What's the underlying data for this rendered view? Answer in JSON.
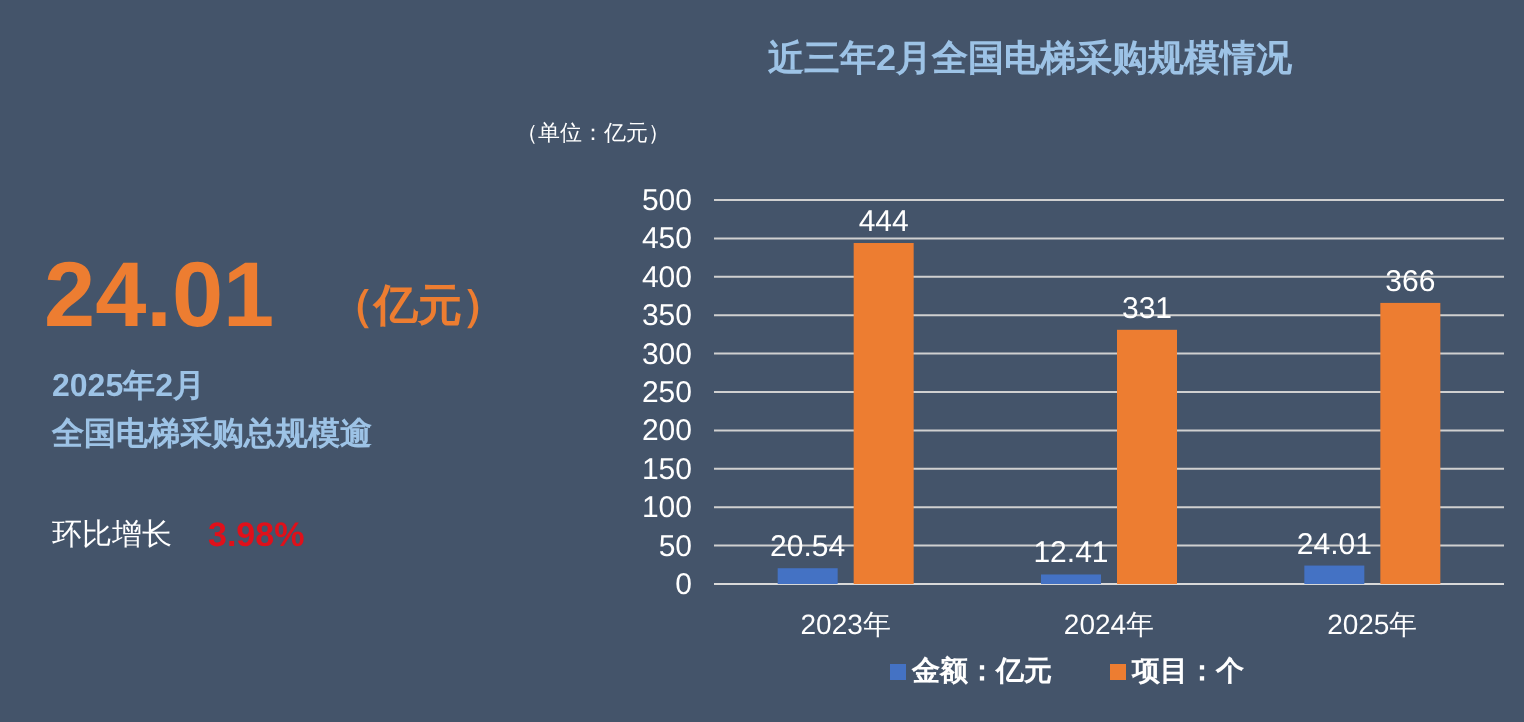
{
  "chart_data": {
    "type": "bar",
    "title": "近三年2月全国电梯采购规模情况",
    "subtitle": "（单位：亿元）",
    "categories": [
      "2023年",
      "2024年",
      "2025年"
    ],
    "series": [
      {
        "name": "金额：亿元",
        "color": "#4472c4",
        "values": [
          20.54,
          12.41,
          24.01
        ]
      },
      {
        "name": "项目：个",
        "color": "#ed7d31",
        "values": [
          444,
          331,
          366
        ]
      }
    ],
    "ylim": [
      0,
      500
    ],
    "yticks": [
      0,
      50,
      100,
      150,
      200,
      250,
      300,
      350,
      400,
      450,
      500
    ],
    "grid": "y",
    "legend": "bottom",
    "data_labels": true,
    "annotations": [
      "24.01",
      "（亿元）",
      "2025年2月",
      "全国电梯采购总规模逾",
      "环比增长",
      "3.98%"
    ]
  }
}
